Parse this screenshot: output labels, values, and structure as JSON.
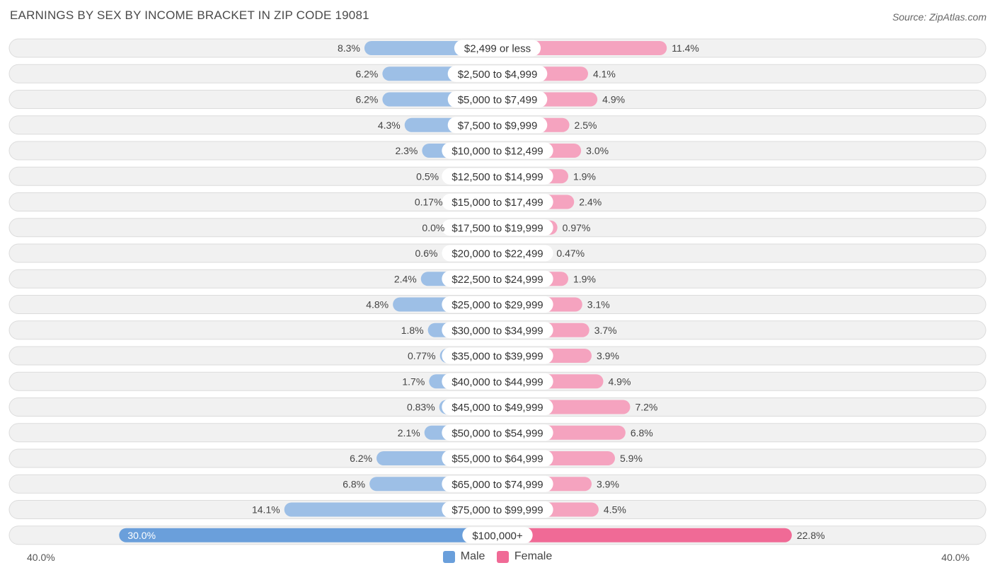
{
  "title": "EARNINGS BY SEX BY INCOME BRACKET IN ZIP CODE 19081",
  "source": "Source: ZipAtlas.com",
  "colors": {
    "male": "#9dbfe6",
    "male_strong": "#6a9fdb",
    "female": "#f5a3bf",
    "female_strong": "#f06a96",
    "row_bg": "#f1f1f1",
    "row_border": "#dcdcdc"
  },
  "legend": {
    "male": "Male",
    "female": "Female"
  },
  "axis": {
    "left": "40.0%",
    "right": "40.0%"
  },
  "chart_data": {
    "type": "bar",
    "orientation": "horizontal-diverging",
    "title": "EARNINGS BY SEX BY INCOME BRACKET IN ZIP CODE 19081",
    "xlim": [
      -40,
      40
    ],
    "categories": [
      "$2,499 or less",
      "$2,500 to $4,999",
      "$5,000 to $7,499",
      "$7,500 to $9,999",
      "$10,000 to $12,499",
      "$12,500 to $14,999",
      "$15,000 to $17,499",
      "$17,500 to $19,999",
      "$20,000 to $22,499",
      "$22,500 to $24,999",
      "$25,000 to $29,999",
      "$30,000 to $34,999",
      "$35,000 to $39,999",
      "$40,000 to $44,999",
      "$45,000 to $49,999",
      "$50,000 to $54,999",
      "$55,000 to $64,999",
      "$65,000 to $74,999",
      "$75,000 to $99,999",
      "$100,000+"
    ],
    "series": [
      {
        "name": "Male",
        "values": [
          8.3,
          6.2,
          6.2,
          4.3,
          2.3,
          0.5,
          0.17,
          0.0,
          0.6,
          2.4,
          4.8,
          1.8,
          0.77,
          1.7,
          0.83,
          2.1,
          6.2,
          6.8,
          14.1,
          30.0
        ],
        "labels": [
          "8.3%",
          "6.2%",
          "6.2%",
          "4.3%",
          "2.3%",
          "0.5%",
          "0.17%",
          "0.0%",
          "0.6%",
          "2.4%",
          "4.8%",
          "1.8%",
          "0.77%",
          "1.7%",
          "0.83%",
          "2.1%",
          "6.2%",
          "6.8%",
          "14.1%",
          "30.0%"
        ]
      },
      {
        "name": "Female",
        "values": [
          11.4,
          4.1,
          4.9,
          2.5,
          3.0,
          1.9,
          2.4,
          0.97,
          0.47,
          1.9,
          3.1,
          3.7,
          3.9,
          4.9,
          7.2,
          6.8,
          5.9,
          3.9,
          4.5,
          22.8
        ],
        "labels": [
          "11.4%",
          "4.1%",
          "4.9%",
          "2.5%",
          "3.0%",
          "1.9%",
          "2.4%",
          "0.97%",
          "0.47%",
          "1.9%",
          "3.1%",
          "3.7%",
          "3.9%",
          "4.9%",
          "7.2%",
          "6.8%",
          "5.9%",
          "3.9%",
          "4.5%",
          "22.8%"
        ]
      }
    ]
  }
}
